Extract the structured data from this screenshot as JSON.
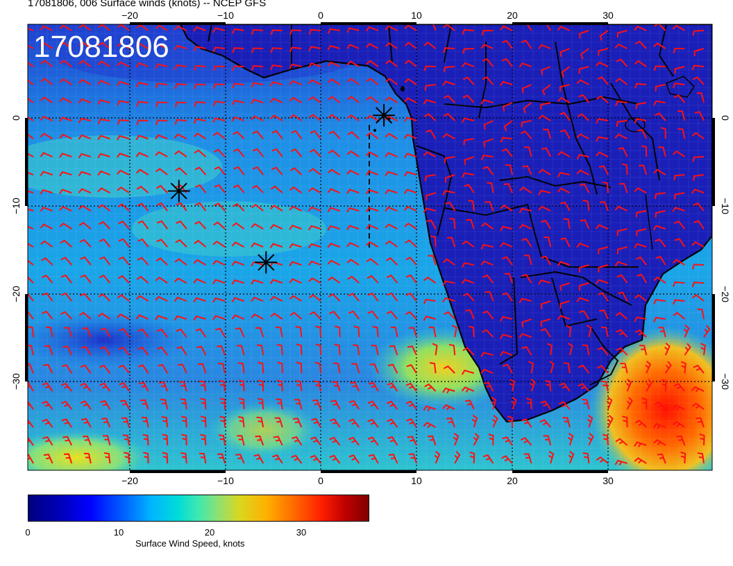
{
  "title": "17081806, 006 Surface winds (knots) -- NCEP GFS",
  "stamp": "17081806",
  "axes": {
    "lon_ticks": [
      "−20",
      "−10",
      "0",
      "10",
      "20",
      "30"
    ],
    "lat_ticks": [
      "0",
      "−10",
      "−20",
      "−30"
    ]
  },
  "colorbar": {
    "ticks": [
      "0",
      "10",
      "20",
      "30"
    ],
    "label": "Surface Wind Speed, knots",
    "colormap": "jet"
  },
  "markers": [
    {
      "name": "star-marker",
      "lon": -14.8,
      "lat": -8.3
    },
    {
      "name": "star-marker",
      "lon": -5.7,
      "lat": -16.4
    },
    {
      "name": "star-marker",
      "lon": 6.6,
      "lat": 0.3
    }
  ],
  "colors": {
    "wind_barb": "#ff1010",
    "coast": "#000000",
    "ocean_base": "#1a6adf"
  }
}
